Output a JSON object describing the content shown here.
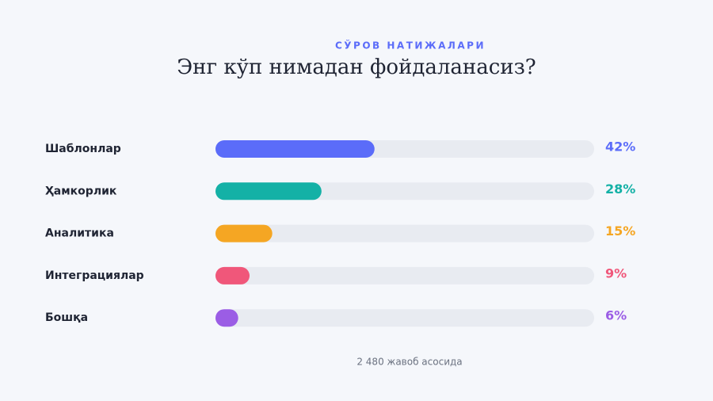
{
  "chart_data": {
    "type": "bar",
    "orientation": "horizontal",
    "subtitle": "СЎРОВ НАТИЖАЛАРИ",
    "title": "Энг кўп нимадан фойдаланасиз?",
    "categories": [
      "Шаблонлар",
      "Ҳамкорлик",
      "Аналитика",
      "Интеграциялар",
      "Бошқа"
    ],
    "values": [
      42,
      28,
      15,
      9,
      6
    ],
    "value_labels": [
      "42%",
      "28%",
      "15%",
      "9%",
      "6%"
    ],
    "colors": [
      "#5b6cf9",
      "#14b1a6",
      "#f5a623",
      "#f0577a",
      "#9b5de5"
    ],
    "xlim": [
      0,
      100
    ],
    "footnote": "2 480 жавоб асосида"
  }
}
